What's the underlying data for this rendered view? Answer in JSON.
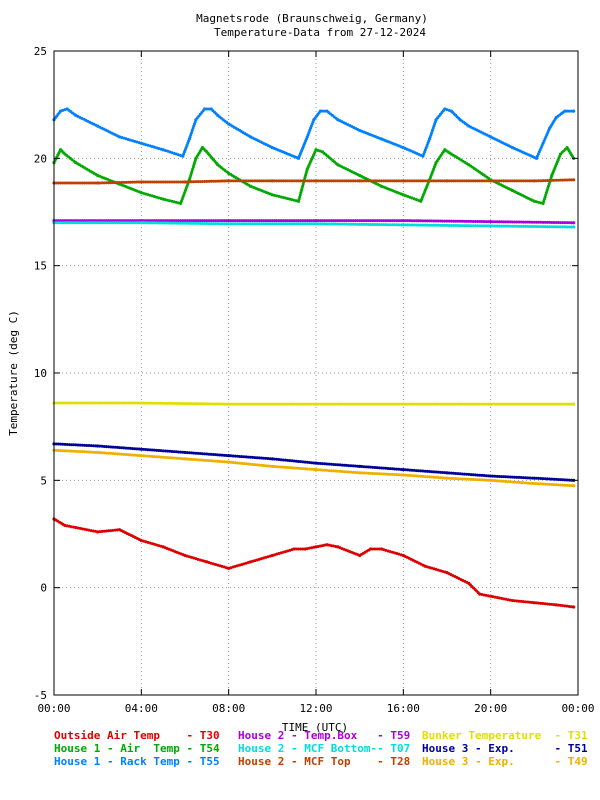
{
  "title_line1": "Magnetsrode (Braunschweig, Germany)",
  "title_line2": "Temperature-Data from 27-12-2024",
  "chart_data": {
    "type": "scatter",
    "xlabel": "TIME (UTC)",
    "ylabel": "Temperature (deg C)",
    "xlim": [
      0,
      24
    ],
    "ylim": [
      -5,
      25
    ],
    "x_ticks": [
      0,
      4,
      8,
      12,
      16,
      20,
      24
    ],
    "x_tick_labels": [
      "00:00",
      "04:00",
      "08:00",
      "12:00",
      "16:00",
      "20:00",
      "00:00"
    ],
    "y_ticks": [
      -5,
      0,
      5,
      10,
      15,
      20,
      25
    ],
    "y_tick_labels": [
      "-5",
      "0",
      "5",
      "10",
      "15",
      "20",
      "25"
    ],
    "grid": true,
    "legend_position": "bottom",
    "series": [
      {
        "name": "Outside Air Temp",
        "code": "T30",
        "color": "#dd0000",
        "x": [
          0,
          0.5,
          1,
          2,
          3,
          4,
          5,
          6,
          7,
          8,
          9,
          10,
          11,
          11.5,
          12,
          12.5,
          13,
          14,
          14.5,
          15,
          16,
          17,
          18,
          19,
          19.5,
          20,
          21,
          22,
          23,
          23.8
        ],
        "y": [
          3.2,
          2.9,
          2.8,
          2.6,
          2.7,
          2.2,
          1.9,
          1.5,
          1.2,
          0.9,
          1.2,
          1.5,
          1.8,
          1.8,
          1.9,
          2.0,
          1.9,
          1.5,
          1.8,
          1.8,
          1.5,
          1.0,
          0.7,
          0.2,
          -0.3,
          -0.4,
          -0.6,
          -0.7,
          -0.8,
          -0.9
        ]
      },
      {
        "name": "House 1 - Air  Temp",
        "code": "T54",
        "color": "#00aa00",
        "x": [
          0,
          0.3,
          0.5,
          1,
          2,
          3,
          4,
          5,
          5.8,
          6.2,
          6.5,
          6.8,
          7,
          7.5,
          8,
          9,
          10,
          11.2,
          11.6,
          12,
          12.3,
          13,
          14,
          15,
          16,
          16.8,
          17.2,
          17.5,
          17.9,
          18.2,
          19,
          20,
          21,
          22,
          22.4,
          22.8,
          23.2,
          23.5,
          23.8
        ],
        "y": [
          19.8,
          20.4,
          20.2,
          19.8,
          19.2,
          18.8,
          18.4,
          18.1,
          17.9,
          19.0,
          20.0,
          20.5,
          20.3,
          19.7,
          19.3,
          18.7,
          18.3,
          18.0,
          19.5,
          20.4,
          20.3,
          19.7,
          19.2,
          18.7,
          18.3,
          18.0,
          19.0,
          19.8,
          20.4,
          20.2,
          19.7,
          19.0,
          18.5,
          18.0,
          17.9,
          19.2,
          20.2,
          20.5,
          20.0
        ]
      },
      {
        "name": "House 1 - Rack Temp",
        "code": "T55",
        "color": "#0080ff",
        "x": [
          0,
          0.3,
          0.6,
          1,
          2,
          3,
          4,
          5,
          5.9,
          6.2,
          6.5,
          6.9,
          7.2,
          7.5,
          8,
          9,
          10,
          11.2,
          11.6,
          11.9,
          12.2,
          12.5,
          13,
          14,
          15,
          16,
          16.9,
          17.2,
          17.5,
          17.9,
          18.2,
          18.6,
          19,
          20,
          21,
          22.1,
          22.4,
          22.7,
          23,
          23.4,
          23.8
        ],
        "y": [
          21.8,
          22.2,
          22.3,
          22.0,
          21.5,
          21.0,
          20.7,
          20.4,
          20.1,
          20.9,
          21.8,
          22.3,
          22.3,
          22.0,
          21.6,
          21.0,
          20.5,
          20.0,
          21.0,
          21.8,
          22.2,
          22.2,
          21.8,
          21.3,
          20.9,
          20.5,
          20.1,
          20.9,
          21.8,
          22.3,
          22.2,
          21.8,
          21.5,
          21.0,
          20.5,
          20.0,
          20.7,
          21.4,
          21.9,
          22.2,
          22.2
        ]
      },
      {
        "name": "House 2 - Temp.Box",
        "code": "T59",
        "color": "#aa00dd",
        "x": [
          0,
          4,
          8,
          12,
          16,
          20,
          23.8
        ],
        "y": [
          17.1,
          17.1,
          17.1,
          17.1,
          17.1,
          17.05,
          17.0
        ]
      },
      {
        "name": "House 2 - MCF Bottom-",
        "code": "T07",
        "color": "#00dddd",
        "x": [
          0,
          4,
          8,
          12,
          16,
          20,
          23.8
        ],
        "y": [
          17.0,
          17.0,
          16.95,
          16.95,
          16.9,
          16.85,
          16.8
        ]
      },
      {
        "name": "House 2 - MCF Top",
        "code": "T28",
        "color": "#c04000",
        "x": [
          0,
          2,
          4,
          6,
          8,
          10,
          12,
          14,
          16,
          18,
          20,
          22,
          23.8
        ],
        "y": [
          18.85,
          18.85,
          18.9,
          18.9,
          18.95,
          18.95,
          18.95,
          18.95,
          18.95,
          18.95,
          18.95,
          18.95,
          19.0
        ]
      },
      {
        "name": "Bunker Temperature",
        "code": "T31",
        "color": "#e0e000",
        "x": [
          0,
          4,
          8,
          12,
          16,
          20,
          23.8
        ],
        "y": [
          8.6,
          8.6,
          8.55,
          8.55,
          8.55,
          8.55,
          8.55
        ]
      },
      {
        "name": "House 3 - Exp.",
        "code": "T51",
        "color": "#000099",
        "x": [
          0,
          2,
          4,
          6,
          8,
          10,
          12,
          14,
          16,
          18,
          20,
          22,
          23.8
        ],
        "y": [
          6.7,
          6.6,
          6.45,
          6.3,
          6.15,
          6.0,
          5.8,
          5.65,
          5.5,
          5.35,
          5.2,
          5.1,
          5.0
        ]
      },
      {
        "name": "House 3 - Exp.",
        "code": "T49",
        "color": "#f0b000",
        "x": [
          0,
          2,
          4,
          6,
          8,
          10,
          12,
          14,
          16,
          18,
          20,
          22,
          23.8
        ],
        "y": [
          6.4,
          6.3,
          6.15,
          6.0,
          5.85,
          5.65,
          5.5,
          5.35,
          5.25,
          5.1,
          5.0,
          4.85,
          4.75
        ]
      }
    ]
  }
}
